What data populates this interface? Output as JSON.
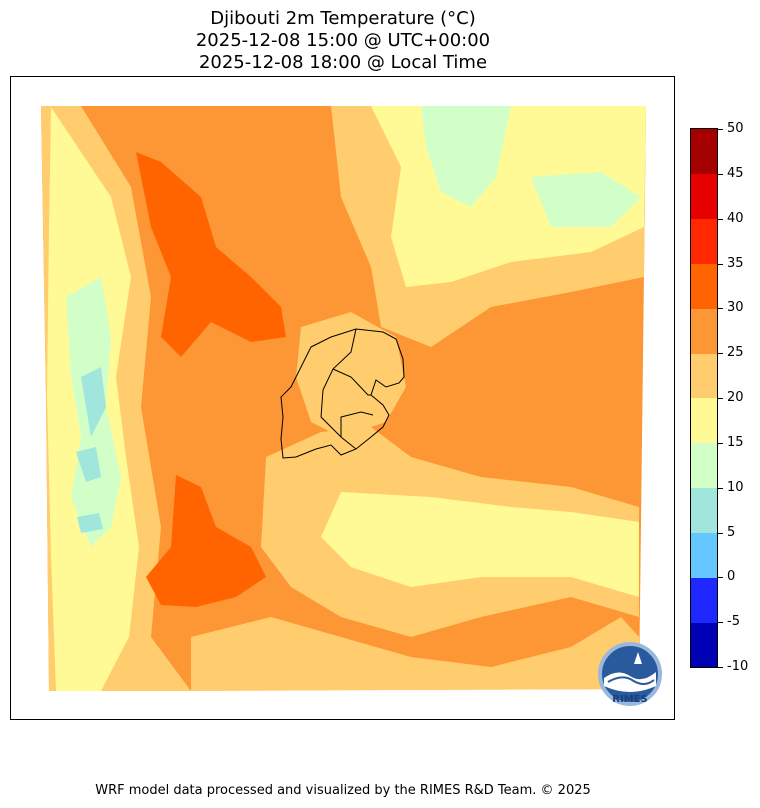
{
  "title": {
    "line1": "Djibouti 2m Temperature (°C)",
    "line2": "2025-12-08 15:00 @ UTC+00:00",
    "line3": "2025-12-08 18:00 @ Local Time"
  },
  "colorbar": {
    "levels": [
      -10,
      -5,
      0,
      5,
      10,
      15,
      20,
      25,
      30,
      35,
      40,
      45,
      50
    ],
    "labels": [
      "-10",
      "-5",
      "0",
      "5",
      "10",
      "15",
      "20",
      "25",
      "30",
      "35",
      "40",
      "45",
      "50"
    ],
    "colors": [
      "#0000b4",
      "#1e28ff",
      "#64c8ff",
      "#a0e6dc",
      "#d2ffc8",
      "#fffa96",
      "#ffcc6e",
      "#fd9634",
      "#ff6400",
      "#ff2800",
      "#e60000",
      "#a50000"
    ]
  },
  "map_colors": {
    "warm_orange": "#fd9634",
    "hot_orange": "#ff6400",
    "light_orange": "#ffcc6e",
    "yellow": "#fffa96",
    "pale_green": "#d2ffc8",
    "cyan": "#a0e6dc"
  },
  "logo": {
    "text": "RIMES"
  },
  "footer": "WRF model data processed and visualized by the RIMES R&D Team. © 2025"
}
